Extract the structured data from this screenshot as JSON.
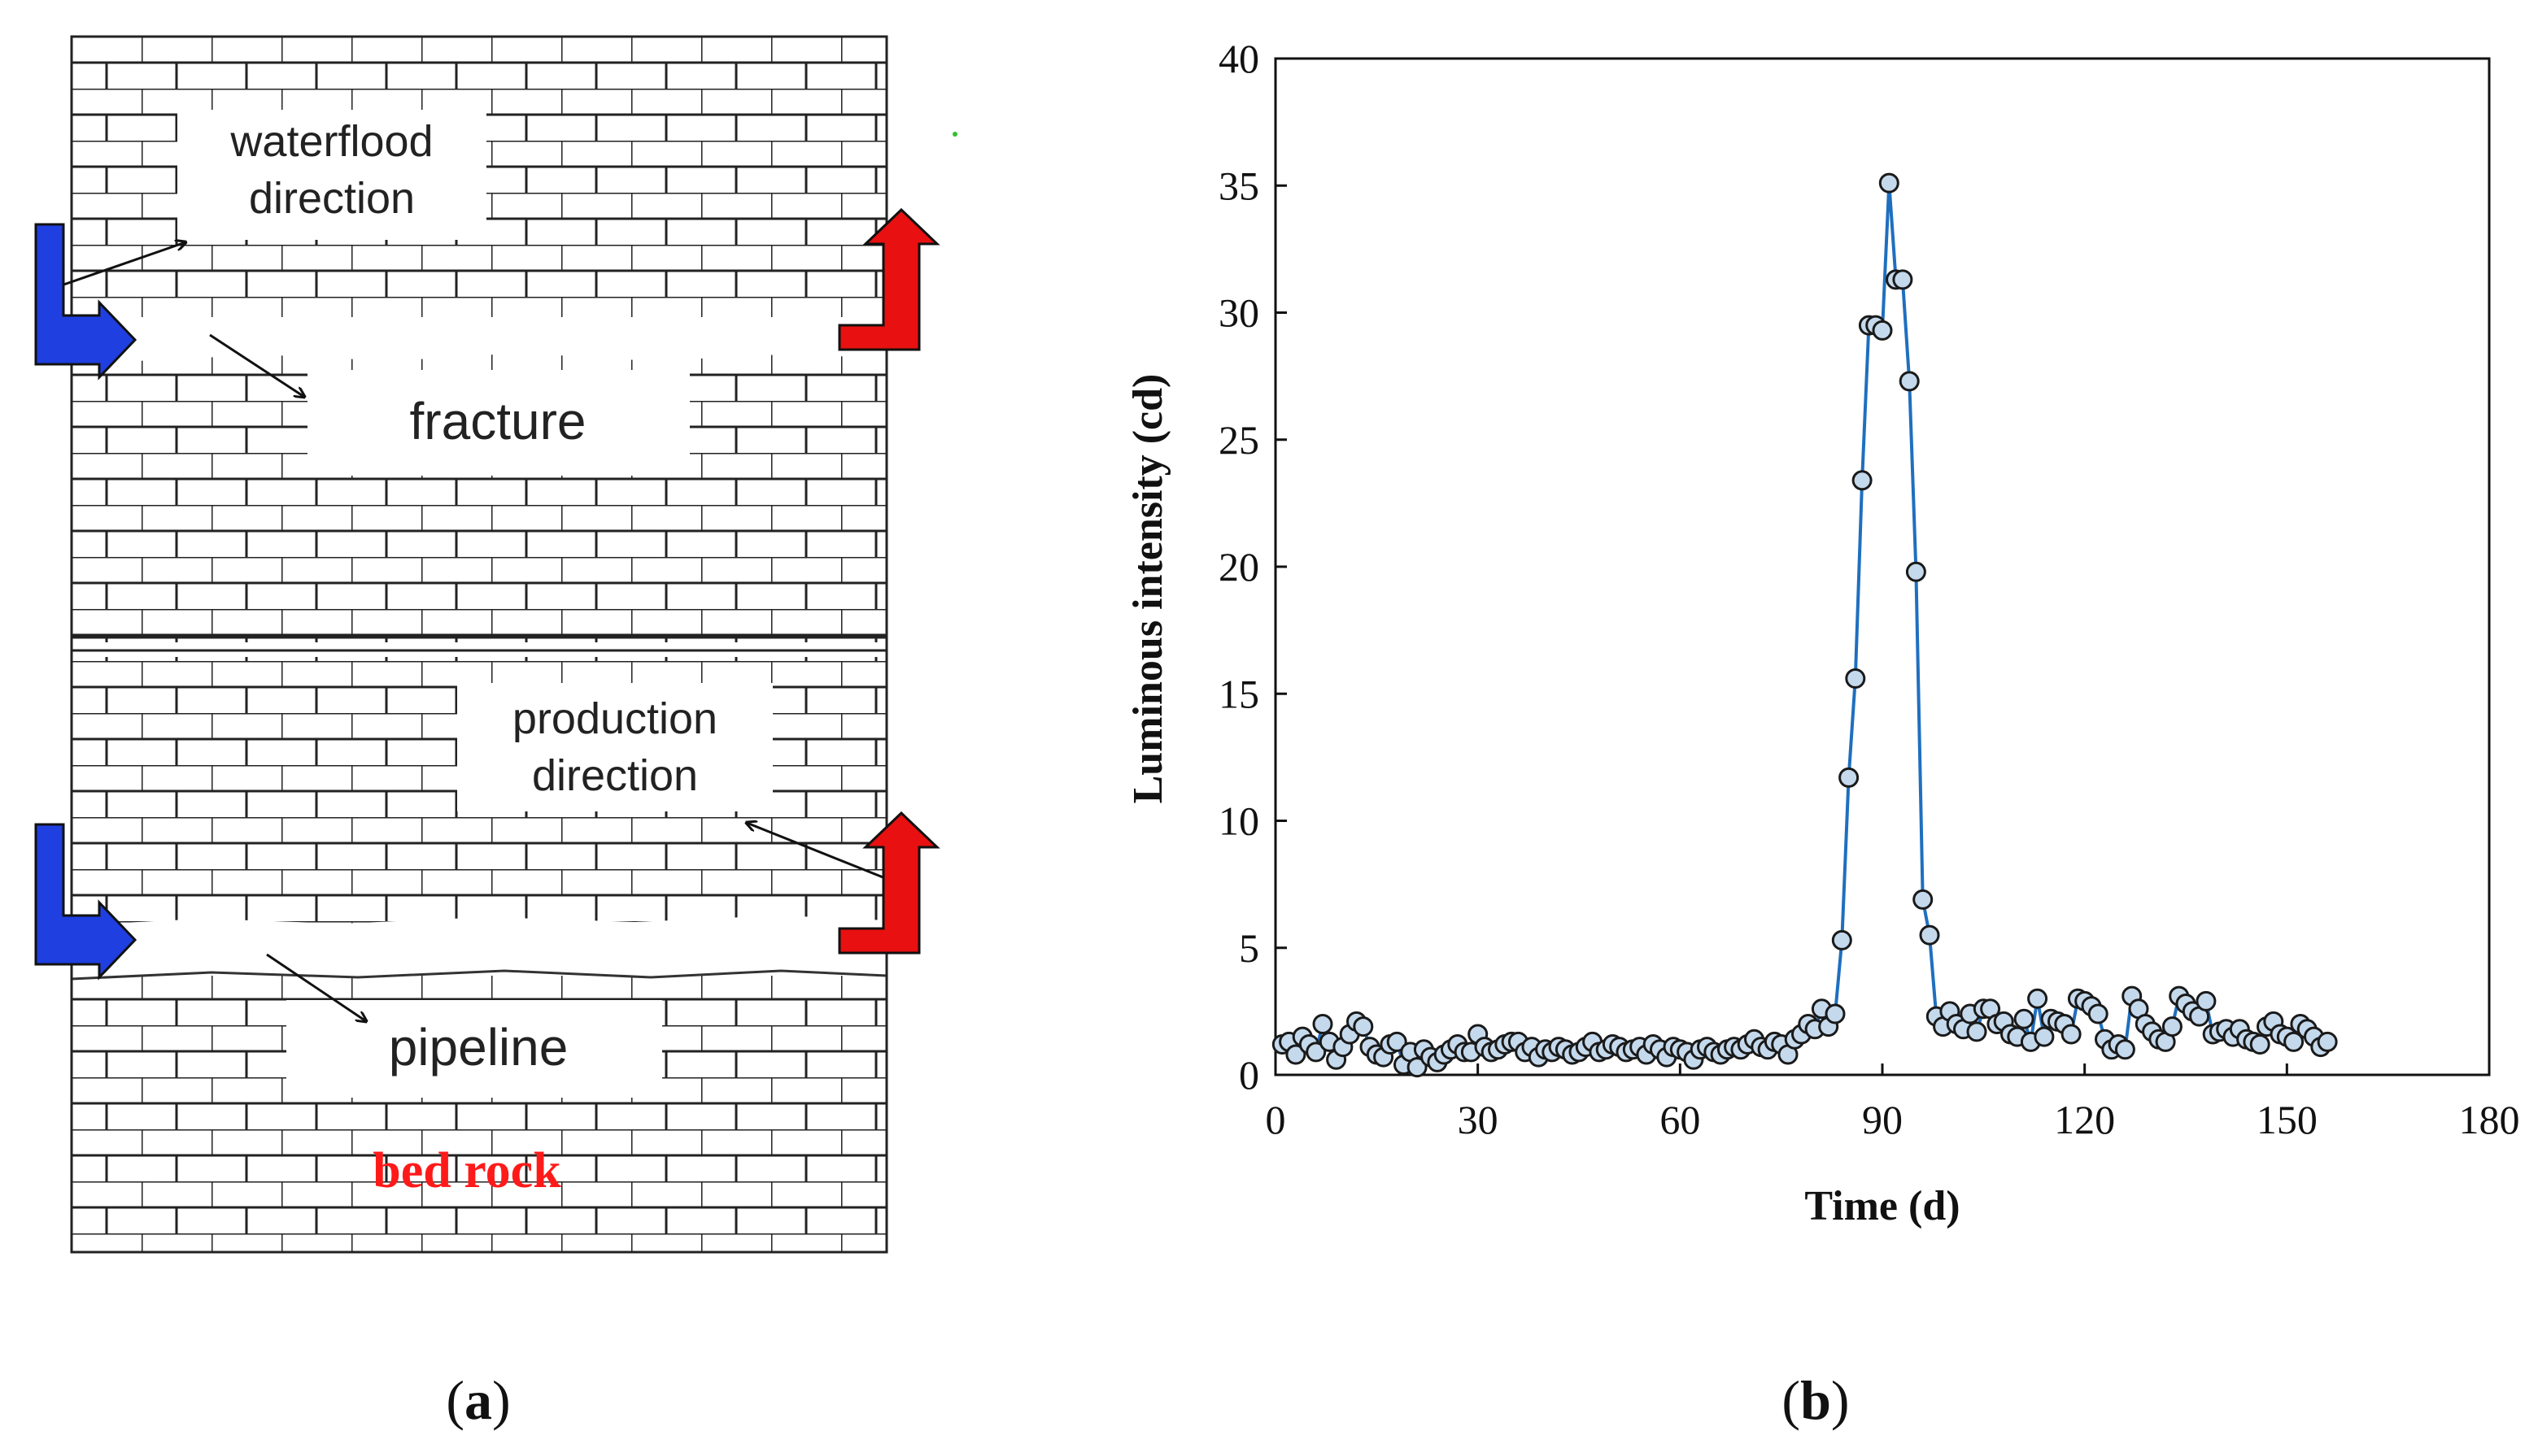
{
  "panel_a": {
    "caption_open": "(",
    "caption_letter": "a",
    "caption_close": ")",
    "labels": {
      "waterflood_line1": "waterflood",
      "waterflood_line2": "direction",
      "fracture": "fracture",
      "production_line1": "production",
      "production_line2": "direction",
      "pipeline": "pipeline",
      "bed_rock": "bed rock"
    },
    "colors": {
      "injection_arrow": "#1f3fe0",
      "production_arrow": "#e81010",
      "bed_rock_text": "#ff1a1a",
      "brick_line": "#222222"
    }
  },
  "panel_b": {
    "caption_open": "(",
    "caption_letter": "b",
    "caption_close": ")"
  },
  "chart_data": {
    "type": "line",
    "title": "",
    "xlabel": "Time (d)",
    "ylabel": "Luminous intensity (cd)",
    "xlim": [
      0,
      180
    ],
    "ylim": [
      0,
      40
    ],
    "xticks": [
      0,
      30,
      60,
      90,
      120,
      150,
      180
    ],
    "yticks": [
      0,
      5,
      10,
      15,
      20,
      25,
      30,
      35,
      40
    ],
    "line_color": "#1f6fbf",
    "marker_fill": "#c5d9ec",
    "marker_edge": "#1a1a1a",
    "series": [
      {
        "name": "Luminous intensity",
        "x": [
          1,
          2,
          3,
          4,
          5,
          6,
          7,
          8,
          9,
          10,
          11,
          12,
          13,
          14,
          15,
          16,
          17,
          18,
          19,
          20,
          21,
          22,
          23,
          24,
          25,
          26,
          27,
          28,
          29,
          30,
          31,
          32,
          33,
          34,
          35,
          36,
          37,
          38,
          39,
          40,
          41,
          42,
          43,
          44,
          45,
          46,
          47,
          48,
          49,
          50,
          51,
          52,
          53,
          54,
          55,
          56,
          57,
          58,
          59,
          60,
          61,
          62,
          63,
          64,
          65,
          66,
          67,
          68,
          69,
          70,
          71,
          72,
          73,
          74,
          75,
          76,
          77,
          78,
          79,
          80,
          81,
          82,
          83,
          84,
          85,
          86,
          87,
          88,
          89,
          90,
          91,
          92,
          93,
          94,
          95,
          96,
          97,
          98,
          99,
          100,
          101,
          102,
          103,
          104,
          105,
          106,
          107,
          108,
          109,
          110,
          111,
          112,
          113,
          114,
          115,
          116,
          117,
          118,
          119,
          120,
          121,
          122,
          123,
          124,
          125,
          126,
          127,
          128,
          129,
          130,
          131,
          132,
          133,
          134,
          135,
          136,
          137,
          138,
          139,
          140,
          141,
          142,
          143,
          144,
          145,
          146,
          147,
          148,
          149,
          150,
          151,
          152,
          153,
          154,
          155,
          156
        ],
        "y": [
          1.2,
          1.3,
          0.8,
          1.5,
          1.2,
          0.9,
          2.0,
          1.3,
          0.6,
          1.1,
          1.6,
          2.1,
          1.9,
          1.1,
          0.8,
          0.7,
          1.2,
          1.3,
          0.4,
          0.9,
          0.3,
          1.0,
          0.7,
          0.5,
          0.8,
          1.0,
          1.2,
          0.9,
          0.9,
          1.6,
          1.1,
          0.9,
          1.0,
          1.2,
          1.3,
          1.3,
          0.9,
          1.1,
          0.7,
          1.0,
          0.9,
          1.1,
          1.0,
          0.8,
          0.9,
          1.1,
          1.3,
          0.9,
          1.0,
          1.2,
          1.1,
          0.9,
          1.0,
          1.1,
          0.8,
          1.2,
          1.0,
          0.7,
          1.1,
          1.0,
          0.9,
          0.6,
          1.0,
          1.1,
          0.9,
          0.8,
          1.0,
          1.1,
          1.0,
          1.2,
          1.4,
          1.1,
          1.0,
          1.3,
          1.2,
          0.8,
          1.4,
          1.6,
          2.0,
          1.8,
          2.6,
          1.9,
          2.4,
          5.3,
          11.7,
          15.6,
          23.4,
          29.5,
          29.5,
          29.3,
          35.1,
          31.3,
          31.3,
          27.3,
          19.8,
          6.9,
          5.5,
          2.3,
          1.9,
          2.5,
          2.0,
          1.8,
          2.4,
          1.7,
          2.6,
          2.6,
          2.0,
          2.1,
          1.6,
          1.5,
          2.2,
          1.3,
          3.0,
          1.5,
          2.2,
          2.1,
          2.0,
          1.6,
          3.0,
          2.9,
          2.7,
          2.4,
          1.4,
          1.0,
          1.2,
          1.0,
          3.1,
          2.6,
          2.0,
          1.7,
          1.4,
          1.3,
          1.9,
          3.1,
          2.8,
          2.5,
          2.3,
          2.9,
          1.6,
          1.7,
          1.8,
          1.5,
          1.8,
          1.4,
          1.3,
          1.2,
          1.9,
          2.1,
          1.6,
          1.5,
          1.3,
          2.0,
          1.8,
          1.5,
          1.1,
          1.3
        ],
        "show_line": true,
        "show_markers": true
      }
    ]
  }
}
